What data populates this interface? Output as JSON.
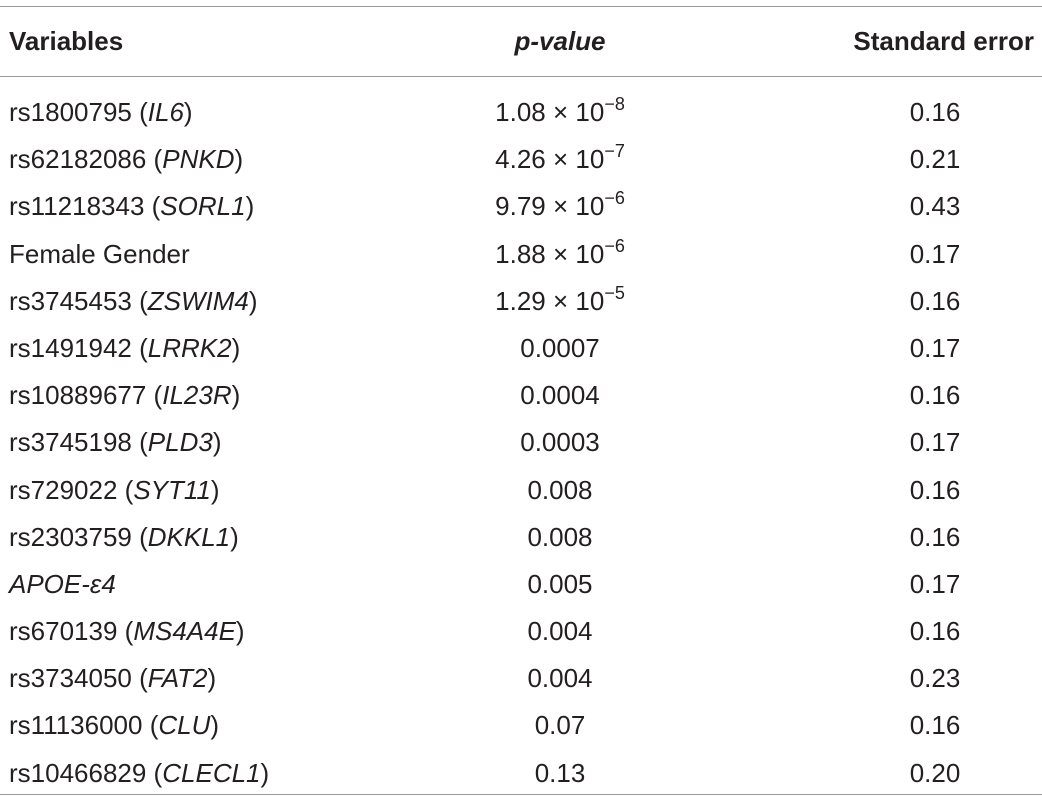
{
  "header": {
    "col_variables": "Variables",
    "col_pvalue": "p-value",
    "col_se": "Standard error"
  },
  "rows": [
    {
      "prefix": "rs1800795 (",
      "gene": "IL6",
      "suffix": ")",
      "p_mant": "1.08 × 10",
      "p_exp": "−8",
      "p_plain": "",
      "se": "0.16"
    },
    {
      "prefix": "rs62182086 (",
      "gene": "PNKD",
      "suffix": ")",
      "p_mant": "4.26 × 10",
      "p_exp": "−7",
      "p_plain": "",
      "se": "0.21"
    },
    {
      "prefix": "rs11218343 (",
      "gene": "SORL1",
      "suffix": ")",
      "p_mant": "9.79 × 10",
      "p_exp": "−6",
      "p_plain": "",
      "se": "0.43"
    },
    {
      "prefix": "Female Gender",
      "gene": "",
      "suffix": "",
      "p_mant": "1.88 × 10",
      "p_exp": "−6",
      "p_plain": "",
      "se": "0.17"
    },
    {
      "prefix": "rs3745453 (",
      "gene": "ZSWIM4",
      "suffix": ")",
      "p_mant": "1.29 × 10",
      "p_exp": "−5",
      "p_plain": "",
      "se": "0.16"
    },
    {
      "prefix": "rs1491942 (",
      "gene": "LRRK2",
      "suffix": ")",
      "p_mant": "",
      "p_exp": "",
      "p_plain": "0.0007",
      "se": "0.17"
    },
    {
      "prefix": "rs10889677 (",
      "gene": "IL23R",
      "suffix": ")",
      "p_mant": "",
      "p_exp": "",
      "p_plain": "0.0004",
      "se": "0.16"
    },
    {
      "prefix": "rs3745198 (",
      "gene": "PLD3",
      "suffix": ")",
      "p_mant": "",
      "p_exp": "",
      "p_plain": "0.0003",
      "se": "0.17"
    },
    {
      "prefix": "rs729022 (",
      "gene": "SYT11",
      "suffix": ")",
      "p_mant": "",
      "p_exp": "",
      "p_plain": "0.008",
      "se": "0.16"
    },
    {
      "prefix": "rs2303759 (",
      "gene": "DKKL1",
      "suffix": ")",
      "p_mant": "",
      "p_exp": "",
      "p_plain": "0.008",
      "se": "0.16"
    },
    {
      "prefix": "",
      "gene": "APOE-ε4",
      "suffix": "",
      "p_mant": "",
      "p_exp": "",
      "p_plain": "0.005",
      "se": "0.17"
    },
    {
      "prefix": "rs670139 (",
      "gene": "MS4A4E",
      "suffix": ")",
      "p_mant": "",
      "p_exp": "",
      "p_plain": "0.004",
      "se": "0.16"
    },
    {
      "prefix": "rs3734050 (",
      "gene": "FAT2",
      "suffix": ")",
      "p_mant": "",
      "p_exp": "",
      "p_plain": "0.004",
      "se": "0.23"
    },
    {
      "prefix": "rs11136000 (",
      "gene": "CLU",
      "suffix": ")",
      "p_mant": "",
      "p_exp": "",
      "p_plain": "0.07",
      "se": "0.16"
    },
    {
      "prefix": "rs10466829 (",
      "gene": "CLECL1",
      "suffix": ")",
      "p_mant": "",
      "p_exp": "",
      "p_plain": "0.13",
      "se": "0.20"
    }
  ]
}
